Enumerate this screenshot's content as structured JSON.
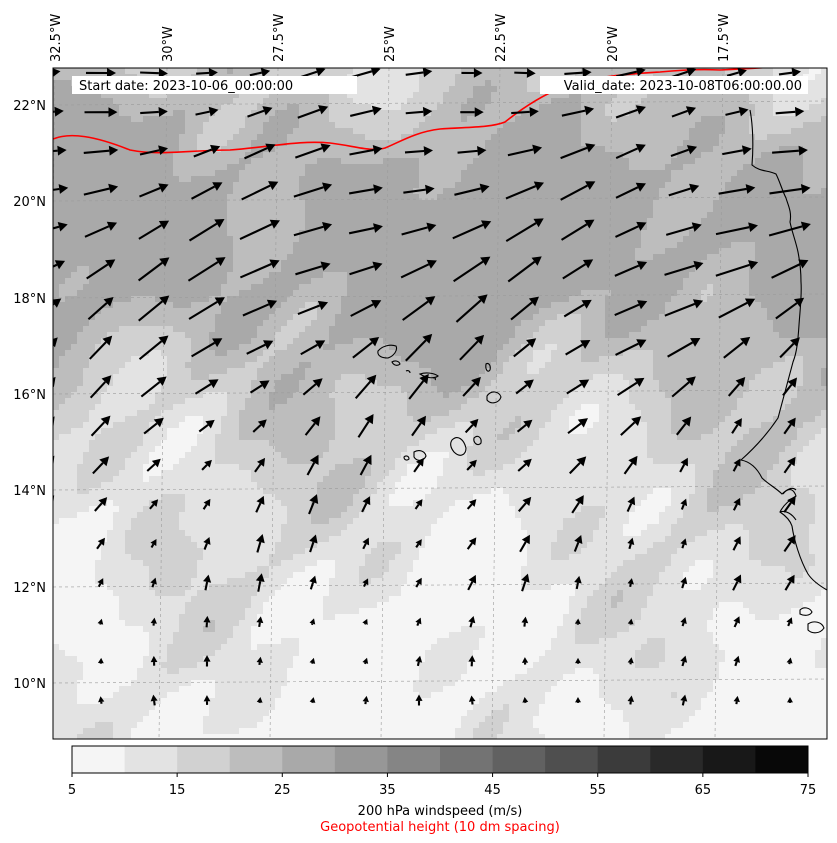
{
  "map": {
    "start_label": "Start date: 2023-10-06_00:00:00",
    "valid_label": "Valid_date: 2023-10-08T06:00:00.00",
    "lon_labels": [
      "32.5°W",
      "30°W",
      "27.5°W",
      "25°W",
      "22.5°W",
      "20°W",
      "17.5°W"
    ],
    "lat_labels": [
      "22°N",
      "20°N",
      "18°N",
      "16°N",
      "14°N",
      "12°N",
      "10°N"
    ],
    "lon_range": [
      -33.0,
      -15.5
    ],
    "lat_range": [
      8.8,
      22.8
    ],
    "contour_color": "#ff0000",
    "coast_color": "#000000"
  },
  "colorbar": {
    "colors": [
      "#f5f5f5",
      "#e3e3e3",
      "#d1d1d1",
      "#bdbdbd",
      "#a9a9a9",
      "#979797",
      "#858585",
      "#737373",
      "#616161",
      "#4f4f4f",
      "#3b3b3b",
      "#292929",
      "#181818",
      "#080808"
    ],
    "tick_labels": [
      "5",
      "15",
      "25",
      "35",
      "45",
      "55",
      "65",
      "75"
    ],
    "label": "200 hPa windspeed (m/s)",
    "sublabel": "Geopotential height (10 dm spacing)",
    "sublabel_color": "#ff0000"
  }
}
